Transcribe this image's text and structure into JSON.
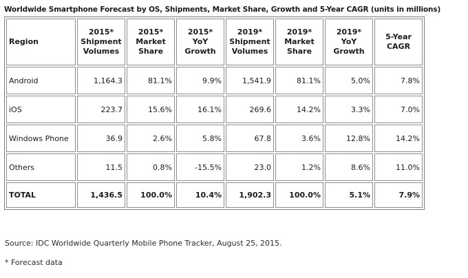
{
  "title": "Worldwide Smartphone Forecast by OS, Shipments, Market Share, Growth and 5-Year CAGR (units in millions)",
  "chart_data": {
    "type": "table",
    "title": "Worldwide Smartphone Forecast by OS, Shipments, Market Share, Growth and 5-Year CAGR (units in millions)",
    "columns": [
      "Region",
      "2015* Shipment Volumes",
      "2015* Market Share",
      "2015* YoY Growth",
      "2019* Shipment Volumes",
      "2019* Market Share",
      "2019* YoY Growth",
      "5-Year CAGR"
    ],
    "rows": [
      [
        "Android",
        "1,164.3",
        "81.1%",
        "9.9%",
        "1,541.9",
        "81.1%",
        "5.0%",
        "7.8%"
      ],
      [
        "iOS",
        "223.7",
        "15.6%",
        "16.1%",
        "269.6",
        "14.2%",
        "3.3%",
        "7.0%"
      ],
      [
        "Windows Phone",
        "36.9",
        "2.6%",
        "5.8%",
        "67.8",
        "3.6%",
        "12.8%",
        "14.2%"
      ],
      [
        "Others",
        "11.5",
        "0.8%",
        "-15.5%",
        "23.0",
        "1.2%",
        "8.6%",
        "11.0%"
      ]
    ],
    "total_row": [
      "TOTAL",
      "1,436.5",
      "100.0%",
      "10.4%",
      "1,902.3",
      "100.0%",
      "5.1%",
      "7.9%"
    ]
  },
  "footer": {
    "source": "Source: IDC Worldwide Quarterly Mobile Phone Tracker, August 25, 2015.",
    "note": "* Forecast data"
  },
  "colors": {
    "background": "#ffffff",
    "text": "#1a1a1a",
    "outer_border": "#7a7a7a",
    "cell_border": "#8c8c8c"
  }
}
